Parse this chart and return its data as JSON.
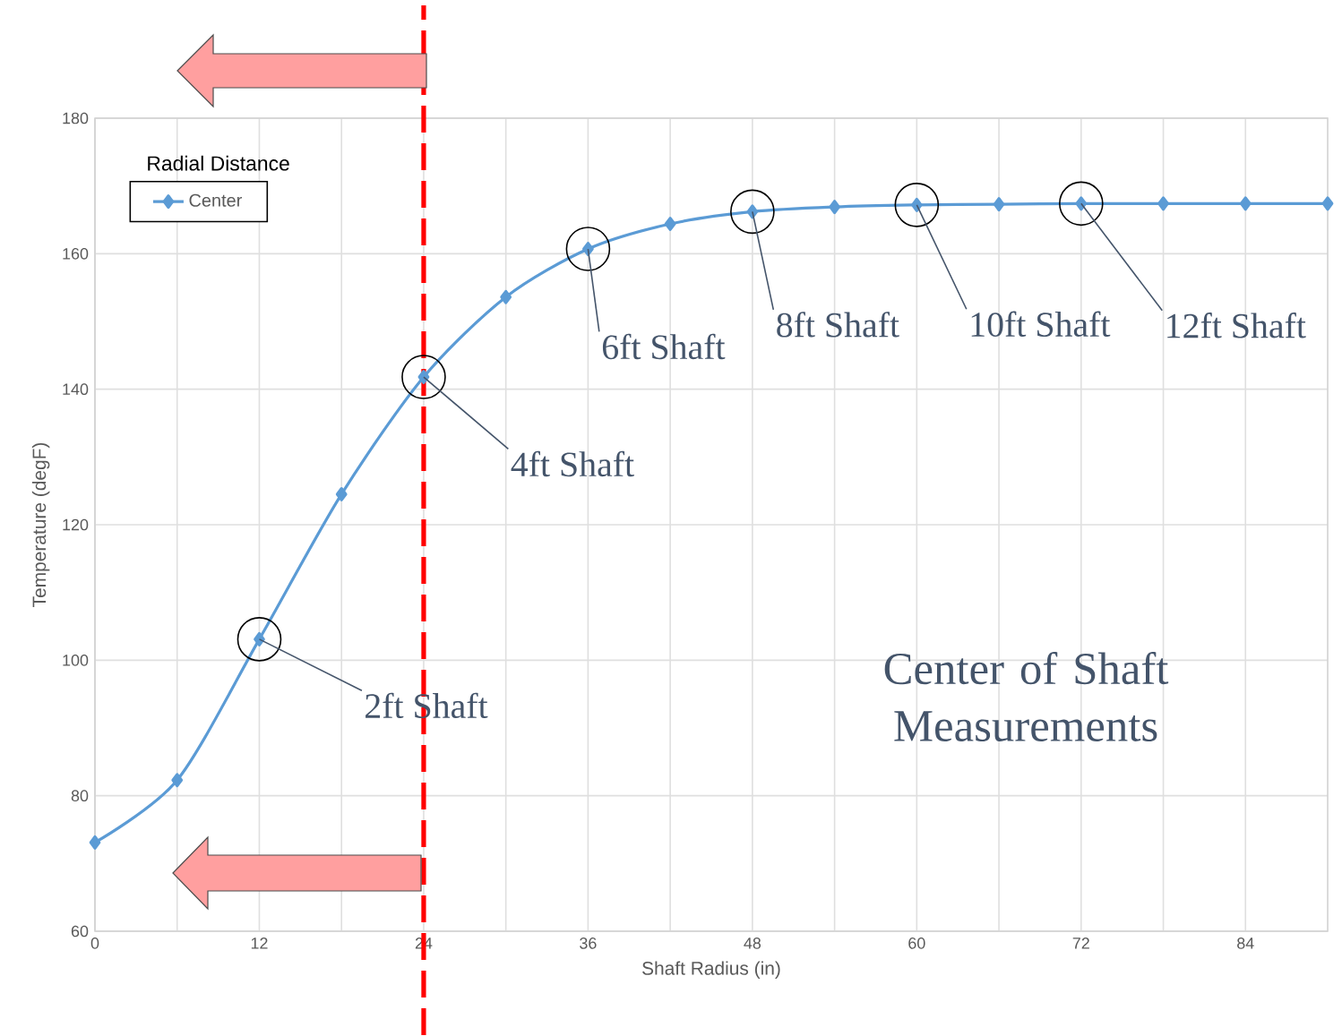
{
  "chart_data": {
    "type": "line",
    "xlabel": "Shaft Radius (in)",
    "ylabel": "Temperature (degF)",
    "legend_title": "Radial Distance",
    "x": [
      0,
      6,
      12,
      18,
      24,
      30,
      36,
      42,
      48,
      54,
      60,
      66,
      72,
      78,
      84,
      90
    ],
    "series": [
      {
        "name": "Center",
        "color": "#5b9bd5",
        "values": [
          73.1,
          82.3,
          103.1,
          124.5,
          141.8,
          153.6,
          160.7,
          164.4,
          166.2,
          166.9,
          167.2,
          167.3,
          167.4,
          167.4,
          167.4,
          167.4
        ]
      }
    ],
    "xlim": [
      0,
      90
    ],
    "ylim": [
      60,
      180
    ],
    "xticks": [
      0,
      {
        "value": 6,
        "label": null
      },
      12,
      {
        "value": 18,
        "label": null
      },
      24,
      {
        "value": 30,
        "label": null
      },
      36,
      {
        "value": 42,
        "label": null
      },
      48,
      {
        "value": 54,
        "label": null
      },
      60,
      {
        "value": 66,
        "label": null
      },
      72,
      {
        "value": 78,
        "label": null
      },
      84
    ],
    "yticks": [
      60,
      80,
      100,
      120,
      140,
      160,
      180
    ],
    "grid": true,
    "legend": "top left",
    "marker": "diamond",
    "line_style": "solid",
    "ref_lines": [
      {
        "axis": "x",
        "value": 24,
        "color": "#ff0000",
        "line_style": "dashed"
      }
    ],
    "annotations": [
      {
        "text": "2ft Shaft",
        "x": 12,
        "y": 103.1
      },
      {
        "text": "4ft Shaft",
        "x": 24,
        "y": 141.8
      },
      {
        "text": "6ft Shaft",
        "x": 36,
        "y": 160.7
      },
      {
        "text": "8ft Shaft",
        "x": 48,
        "y": 166.2
      },
      {
        "text": "10ft Shaft",
        "x": 60,
        "y": 167.2
      },
      {
        "text": "12ft Shaft",
        "x": 72,
        "y": 167.4
      },
      "Center of Shaft Measurements"
    ]
  }
}
